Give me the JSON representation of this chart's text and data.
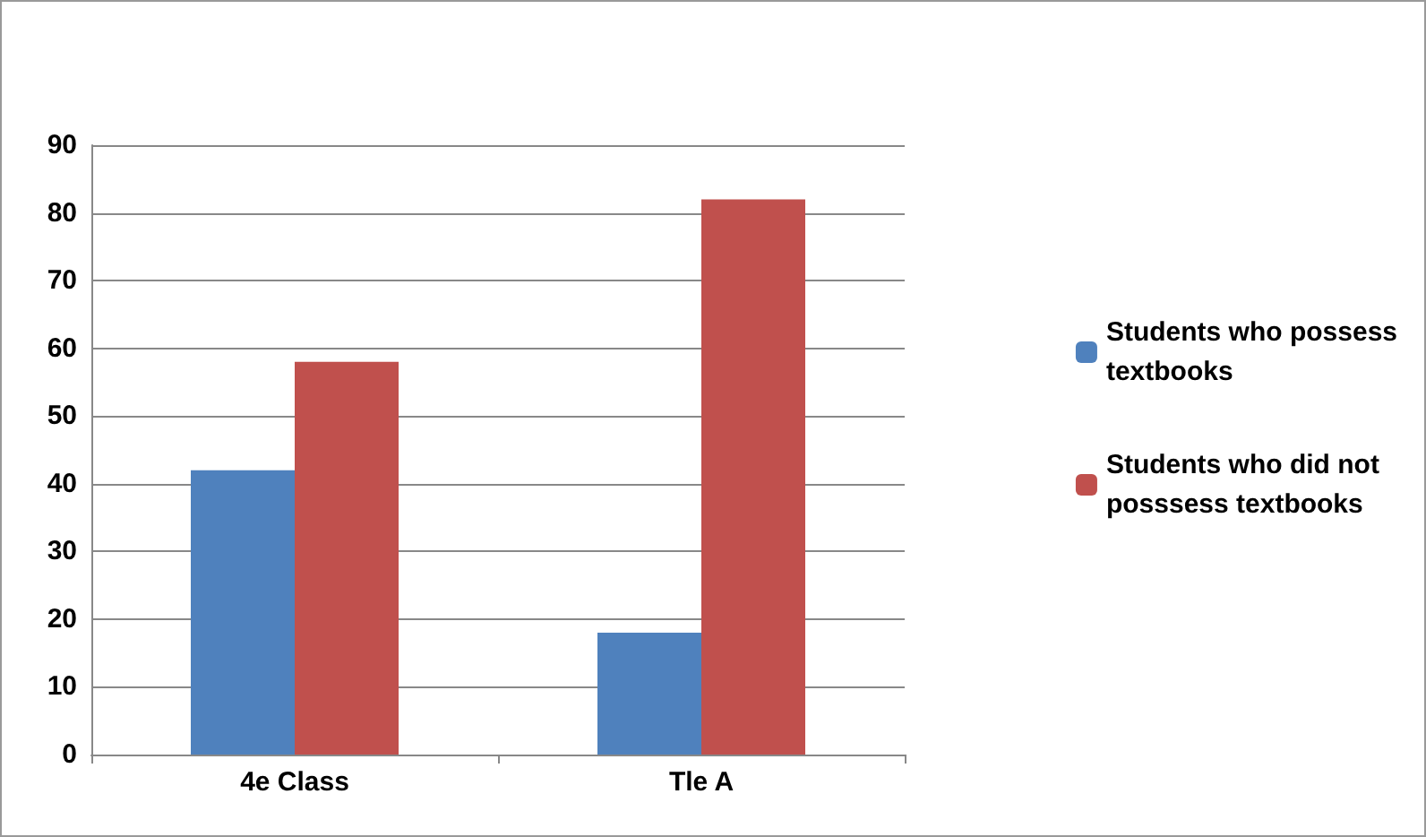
{
  "chart_data": {
    "type": "bar",
    "categories": [
      "4e Class",
      "Tle A"
    ],
    "series": [
      {
        "name": "Students who possess textbooks",
        "color": "#4f81bd",
        "values": [
          42,
          18
        ]
      },
      {
        "name": "Students who did not posssess textbooks",
        "color": "#c0504d",
        "values": [
          58,
          82
        ]
      }
    ],
    "ylim": [
      0,
      90
    ],
    "yticks": [
      0,
      10,
      20,
      30,
      40,
      50,
      60,
      70,
      80,
      90
    ],
    "grid": "y",
    "legend": "right"
  }
}
